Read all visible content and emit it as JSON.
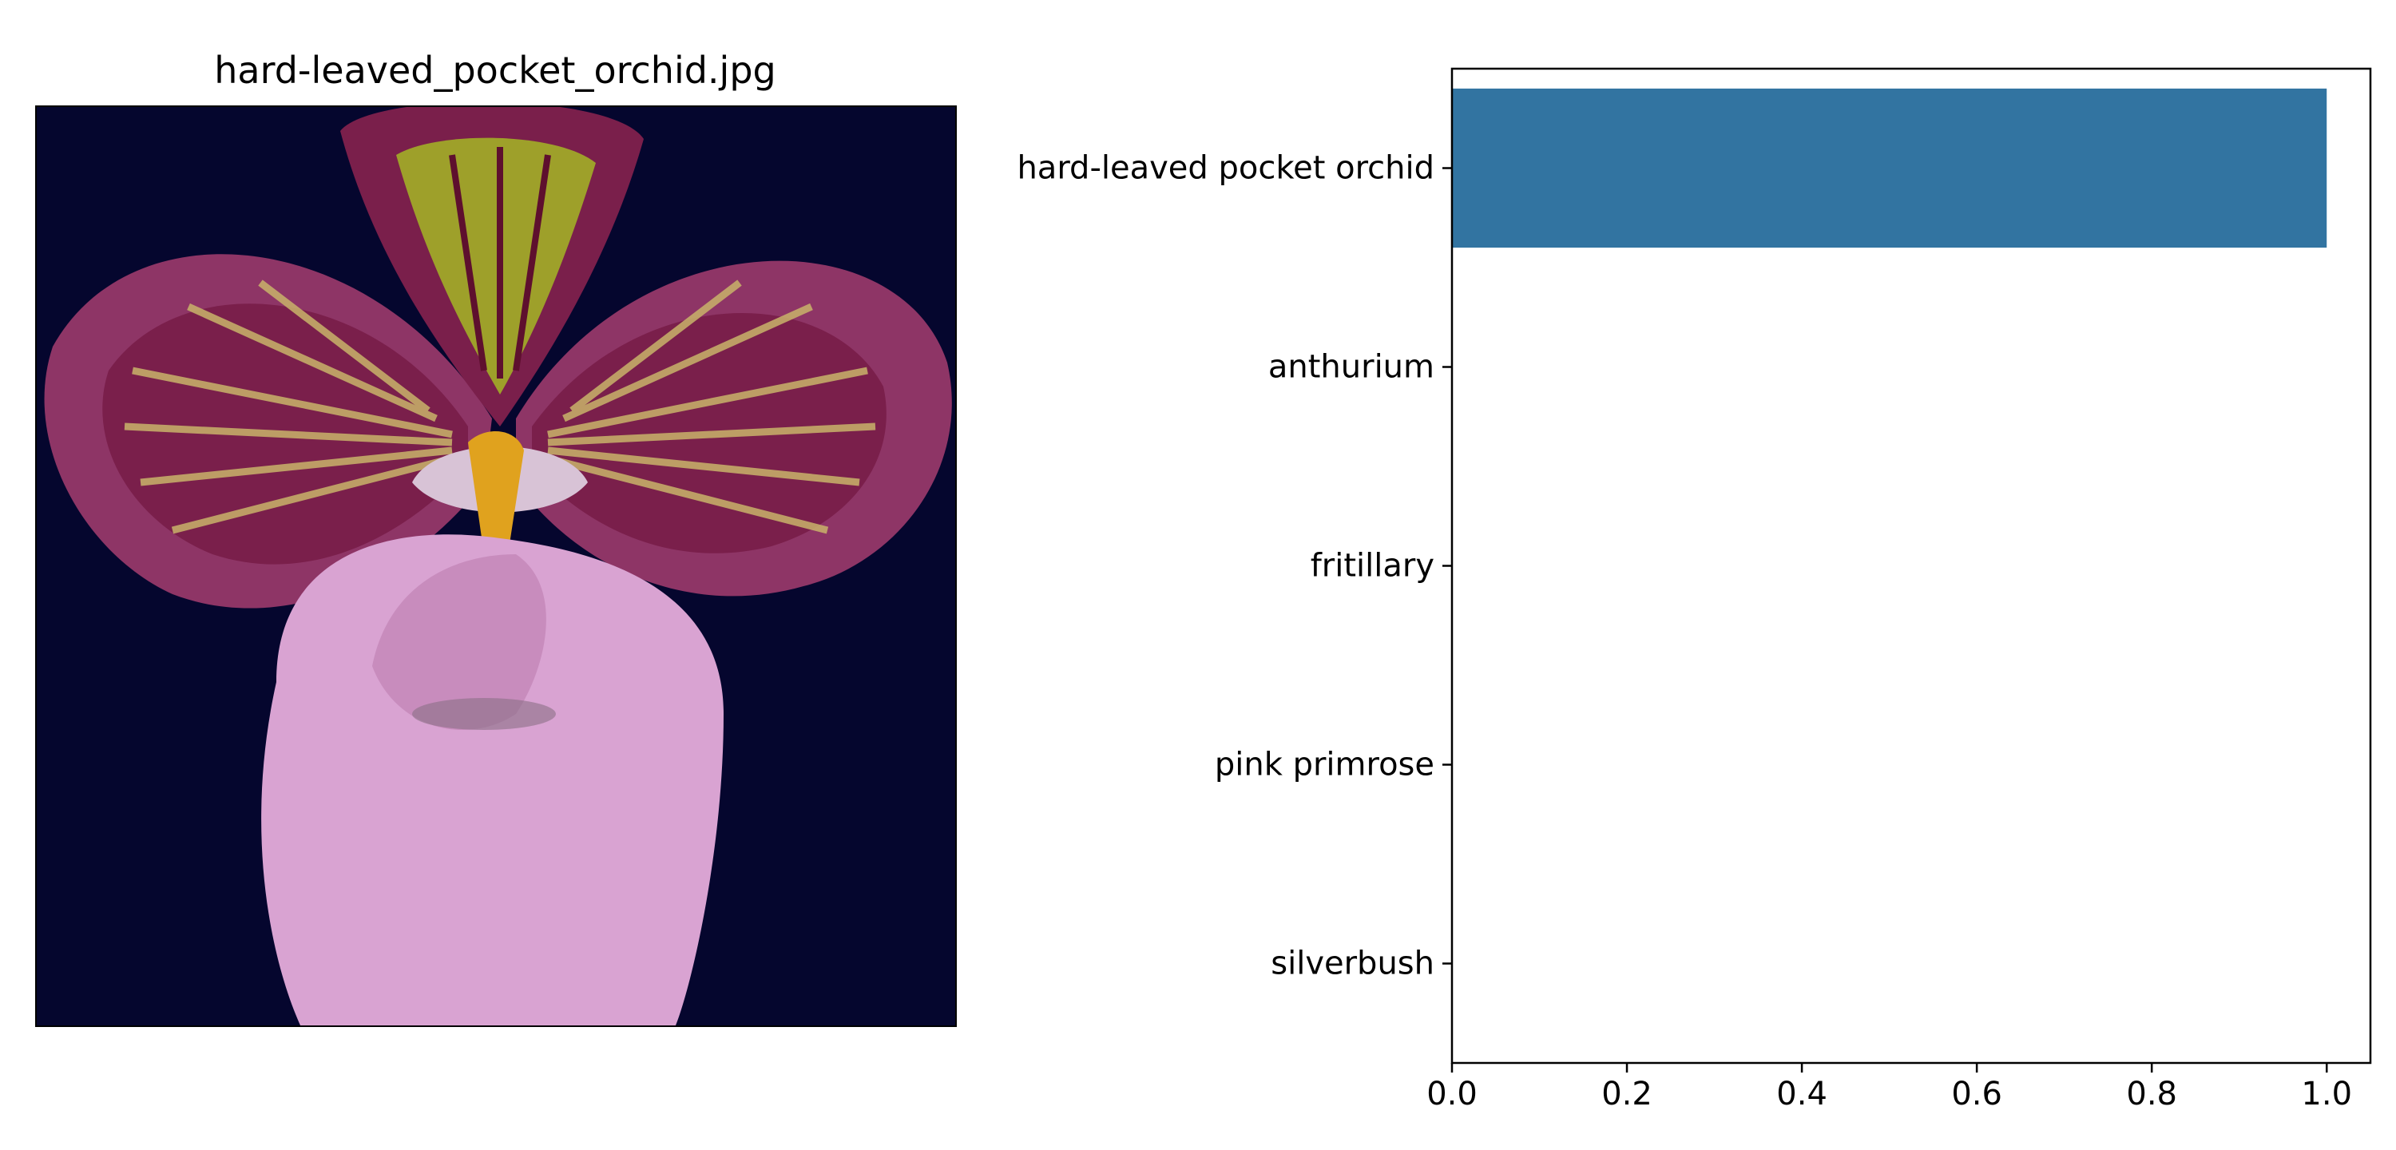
{
  "image_panel": {
    "title": "hard-leaved_pocket_orchid.jpg",
    "background_color": "#05062e"
  },
  "chart_data": {
    "type": "bar",
    "orientation": "horizontal",
    "categories": [
      "hard-leaved pocket orchid",
      "anthurium",
      "fritillary",
      "pink primrose",
      "silverbush"
    ],
    "values": [
      1.0,
      0.0,
      0.0,
      0.0,
      0.0
    ],
    "xlim": [
      0,
      1.05
    ],
    "xticks": [
      0.0,
      0.2,
      0.4,
      0.6,
      0.8,
      1.0
    ],
    "xtick_labels": [
      "0.0",
      "0.2",
      "0.4",
      "0.6",
      "0.8",
      "1.0"
    ],
    "bar_color": "#3274a1",
    "grid": false,
    "title": "",
    "xlabel": "",
    "ylabel": ""
  }
}
